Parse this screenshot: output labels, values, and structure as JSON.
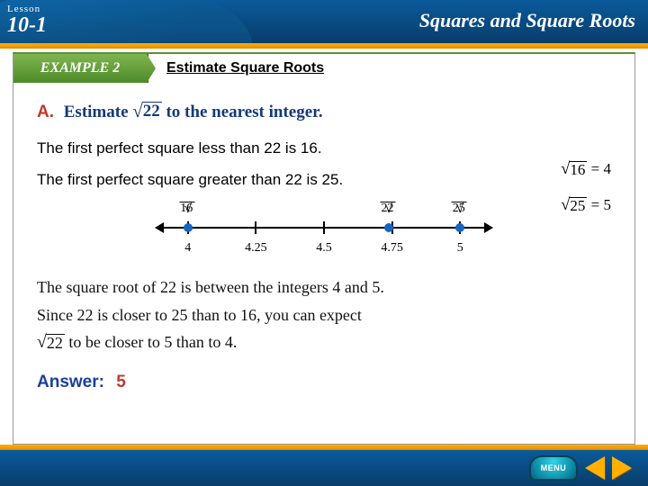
{
  "header": {
    "lesson_label": "Lesson",
    "lesson_number": "10-1",
    "chapter_title": "Squares and Square Roots"
  },
  "example": {
    "badge": "EXAMPLE 2",
    "title": "Estimate Square Roots"
  },
  "prompt": {
    "letter": "A.",
    "pre": "Estimate ",
    "radicand": "22",
    "post": " to the nearest integer."
  },
  "statements": {
    "less": "The first perfect square less than 22 is 16.",
    "greater": "The first perfect square greater than 22 is 25."
  },
  "side_equations": {
    "eq1": {
      "radicand": "16",
      "eq": " = 4"
    },
    "eq2": {
      "radicand": "25",
      "eq": " = 5"
    }
  },
  "numberline": {
    "top_labels": [
      {
        "radicand": "16",
        "pos_pct": 8
      },
      {
        "radicand": "22",
        "pos_pct": 70
      },
      {
        "radicand": "25",
        "pos_pct": 92
      }
    ],
    "ticks_pct": [
      8,
      29,
      50,
      71,
      92
    ],
    "dots_pct": [
      8,
      70,
      92
    ],
    "bottom_labels": [
      {
        "text": "4",
        "pos_pct": 8
      },
      {
        "text": "4.25",
        "pos_pct": 29
      },
      {
        "text": "4.5",
        "pos_pct": 50
      },
      {
        "text": "4.75",
        "pos_pct": 71
      },
      {
        "text": "5",
        "pos_pct": 92
      }
    ],
    "axis_color": "#000000",
    "dot_color": "#1565c0"
  },
  "explanation": {
    "line1_pre": "The square root of 22 is between the integers 4 and 5.",
    "line2": "Since 22 is closer to 25 than to 16, you can expect",
    "line3_radicand": "22",
    "line3_post": " to be closer to 5 than to 4."
  },
  "answer": {
    "label": "Answer:",
    "value": "5"
  },
  "footer": {
    "menu": "MENU"
  },
  "colors": {
    "header_grad_top": "#0a5a9a",
    "header_grad_bot": "#083d6b",
    "accent_top": "#ffb000",
    "accent_bot": "#e78a00",
    "example_grad_top": "#7fb54f",
    "example_grad_bot": "#4d8a2a",
    "prompt_color": "#143a78",
    "letter_color": "#c0392b",
    "answer_label": "#1b3f9c",
    "answer_value": "#c0392b"
  }
}
